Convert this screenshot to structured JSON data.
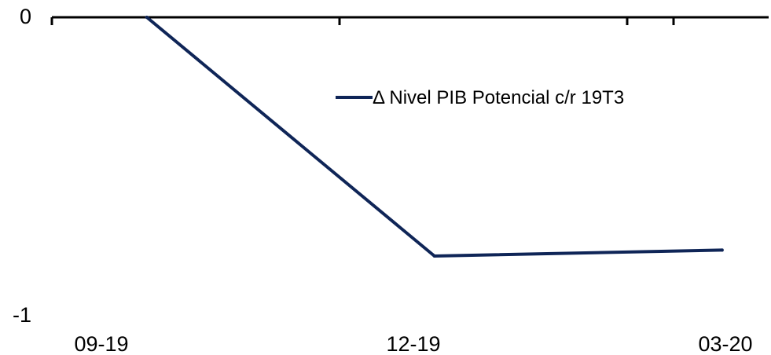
{
  "chart_data": {
    "type": "line",
    "title": "",
    "xlabel": "",
    "ylabel": "",
    "categories": [
      "09-19",
      "12-19",
      "03-20"
    ],
    "x_positions": [
      0.33,
      1.33,
      2.33
    ],
    "xlim": [
      0,
      2.5
    ],
    "ylim": [
      -1,
      0
    ],
    "y_ticks": [
      0,
      -1
    ],
    "y_tick_labels": [
      "0",
      "-1"
    ],
    "x_axis_at": 0,
    "grid": false,
    "legend_position": "top-right",
    "series": [
      {
        "name": "Δ Nivel PIB Potencial c/r 19T3",
        "color": "#0f2557",
        "x": [
          0.33,
          1.33,
          2.33
        ],
        "values": [
          0,
          -0.8,
          -0.78
        ]
      }
    ]
  }
}
